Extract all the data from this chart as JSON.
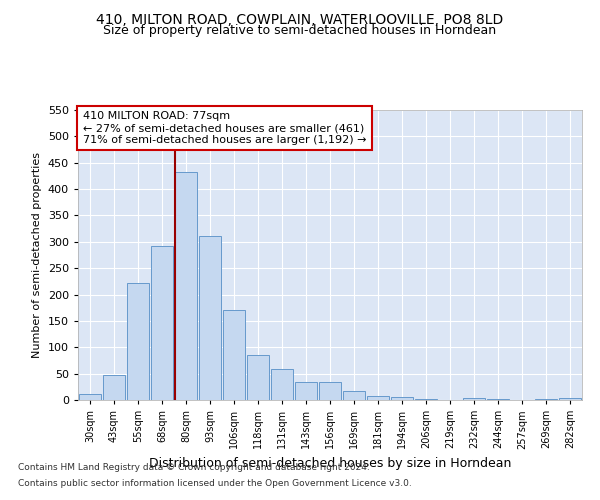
{
  "title": "410, MILTON ROAD, COWPLAIN, WATERLOOVILLE, PO8 8LD",
  "subtitle": "Size of property relative to semi-detached houses in Horndean",
  "xlabel": "Distribution of semi-detached houses by size in Horndean",
  "ylabel": "Number of semi-detached properties",
  "categories": [
    "30sqm",
    "43sqm",
    "55sqm",
    "68sqm",
    "80sqm",
    "93sqm",
    "106sqm",
    "118sqm",
    "131sqm",
    "143sqm",
    "156sqm",
    "169sqm",
    "181sqm",
    "194sqm",
    "206sqm",
    "219sqm",
    "232sqm",
    "244sqm",
    "257sqm",
    "269sqm",
    "282sqm"
  ],
  "values": [
    11,
    48,
    222,
    293,
    432,
    311,
    170,
    85,
    58,
    35,
    35,
    17,
    7,
    5,
    1,
    0,
    4,
    1,
    0,
    2,
    3
  ],
  "bar_color": "#c5d8f0",
  "bar_edge_color": "#6699cc",
  "vline_index": 4,
  "vline_color": "#990000",
  "annotation_text": "410 MILTON ROAD: 77sqm\n← 27% of semi-detached houses are smaller (461)\n71% of semi-detached houses are larger (1,192) →",
  "annotation_box_color": "white",
  "annotation_box_edge": "#cc0000",
  "ylim": [
    0,
    550
  ],
  "yticks": [
    0,
    50,
    100,
    150,
    200,
    250,
    300,
    350,
    400,
    450,
    500,
    550
  ],
  "background_color": "#dce6f5",
  "footer1": "Contains HM Land Registry data © Crown copyright and database right 2024.",
  "footer2": "Contains public sector information licensed under the Open Government Licence v3.0.",
  "title_fontsize": 10,
  "subtitle_fontsize": 9,
  "ylabel_fontsize": 8,
  "xlabel_fontsize": 9
}
